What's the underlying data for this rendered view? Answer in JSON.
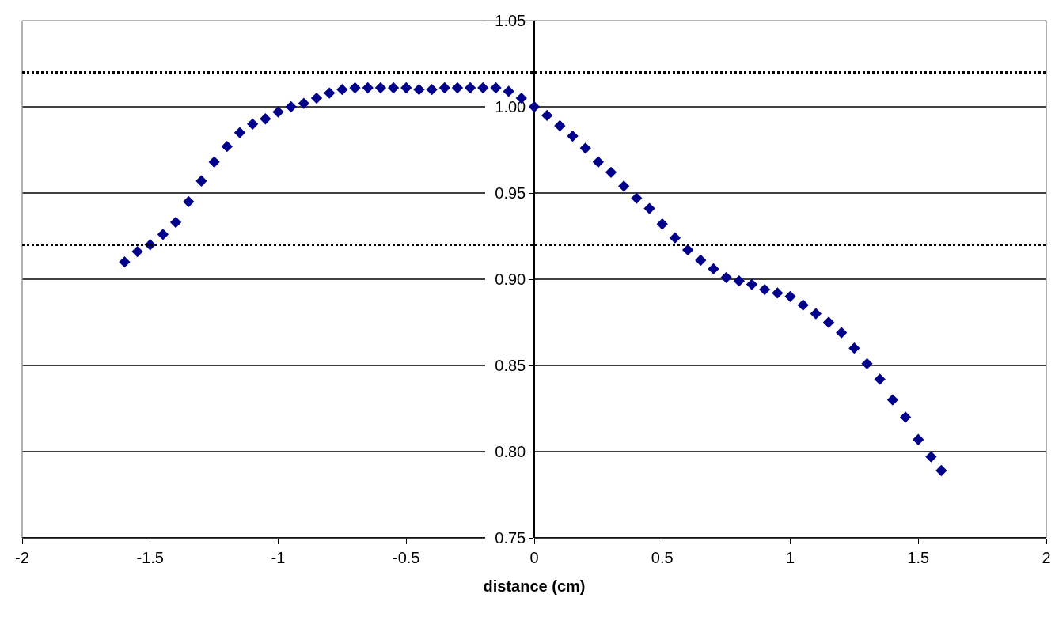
{
  "chart_data": {
    "type": "scatter",
    "xlabel": "distance (cm)",
    "x": [
      -1.6,
      -1.55,
      -1.5,
      -1.45,
      -1.4,
      -1.35,
      -1.3,
      -1.25,
      -1.2,
      -1.15,
      -1.1,
      -1.05,
      -1.0,
      -0.95,
      -0.9,
      -0.85,
      -0.8,
      -0.75,
      -0.7,
      -0.65,
      -0.6,
      -0.55,
      -0.5,
      -0.45,
      -0.4,
      -0.35,
      -0.3,
      -0.25,
      -0.2,
      -0.15,
      -0.1,
      -0.05,
      0,
      0.05,
      0.1,
      0.15,
      0.2,
      0.25,
      0.3,
      0.35,
      0.4,
      0.45,
      0.5,
      0.55,
      0.6,
      0.65,
      0.7,
      0.75,
      0.8,
      0.85,
      0.9,
      0.95,
      1.0,
      1.05,
      1.1,
      1.15,
      1.2,
      1.25,
      1.3,
      1.35,
      1.4,
      1.45,
      1.5,
      1.55,
      1.59
    ],
    "series": [
      {
        "color": "#00008b",
        "values": [
          0.91,
          0.916,
          0.92,
          0.926,
          0.933,
          0.945,
          0.957,
          0.968,
          0.977,
          0.985,
          0.99,
          0.993,
          0.997,
          1.0,
          1.002,
          1.005,
          1.008,
          1.01,
          1.011,
          1.011,
          1.011,
          1.011,
          1.011,
          1.01,
          1.01,
          1.011,
          1.011,
          1.011,
          1.011,
          1.011,
          1.009,
          1.005,
          1.0,
          0.995,
          0.989,
          0.983,
          0.976,
          0.968,
          0.962,
          0.954,
          0.947,
          0.941,
          0.932,
          0.924,
          0.917,
          0.911,
          0.906,
          0.901,
          0.899,
          0.897,
          0.894,
          0.892,
          0.89,
          0.885,
          0.88,
          0.875,
          0.869,
          0.86,
          0.851,
          0.842,
          0.83,
          0.82,
          0.807,
          0.797,
          0.789
        ]
      }
    ],
    "xlim": [
      -2,
      2
    ],
    "xticks": [
      -2,
      -1.5,
      -1,
      -0.5,
      0,
      0.5,
      1,
      1.5,
      2
    ],
    "ylim": [
      0.75,
      1.05
    ],
    "yticks": [
      {
        "value": 0.75,
        "label": "0.75"
      },
      {
        "value": 0.8,
        "label": "0.80"
      },
      {
        "value": 0.85,
        "label": "0.85"
      },
      {
        "value": 0.9,
        "label": "0.90"
      },
      {
        "value": 0.95,
        "label": "0.95"
      },
      {
        "value": 1.0,
        "label": "1.00"
      },
      {
        "value": 1.05,
        "label": "1.05"
      }
    ],
    "ref_lines": [
      {
        "axis": "y",
        "value": 1.02,
        "color": "#000000",
        "line_style": "dotted"
      },
      {
        "axis": "y",
        "value": 0.92,
        "color": "#000000",
        "line_style": "dotted"
      }
    ],
    "grid": "y",
    "marker": "diamond"
  }
}
